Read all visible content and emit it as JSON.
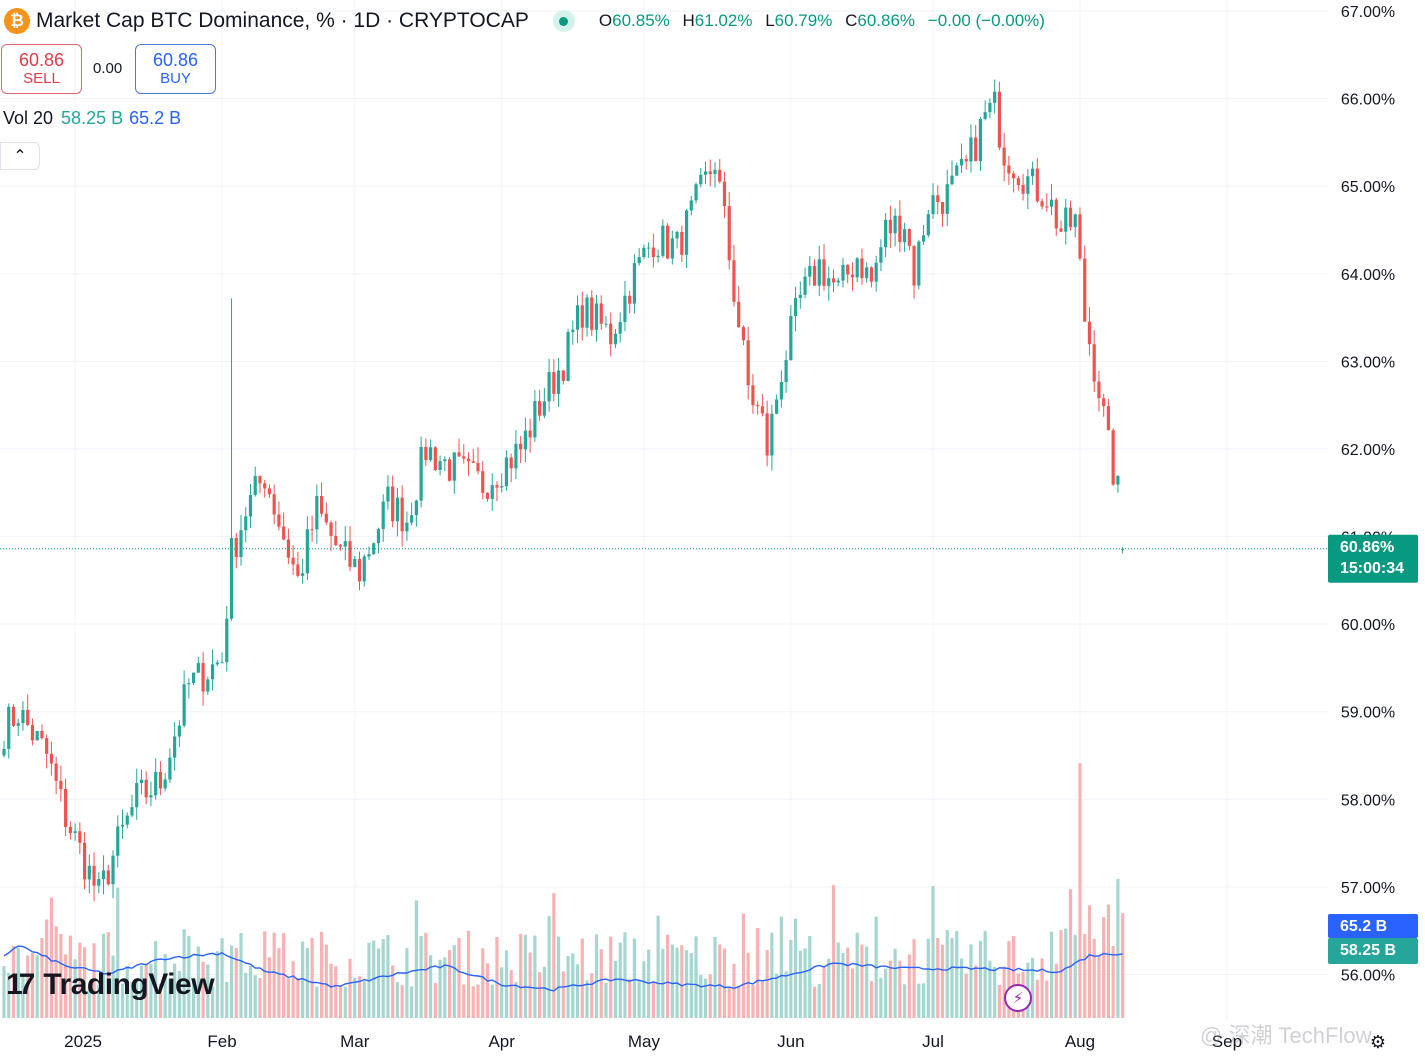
{
  "header": {
    "coin_glyph": "₿",
    "title": "Market Cap BTC Dominance, % · 1D · CRYPTOCAP",
    "ohlc": [
      {
        "key": "O",
        "value": "60.85%"
      },
      {
        "key": "H",
        "value": "61.02%"
      },
      {
        "key": "L",
        "value": "60.79%"
      },
      {
        "key": "C",
        "value": "60.86%"
      },
      {
        "key": "",
        "value": "−0.00 (−0.00%)"
      }
    ]
  },
  "trade": {
    "sell_price": "60.86",
    "sell_label": "SELL",
    "spread": "0.00",
    "buy_price": "60.86",
    "buy_label": "BUY"
  },
  "volume": {
    "label": "Vol 20",
    "value": "58.25 B",
    "ma": "65.2 B"
  },
  "collapse_icon": "chevron-up-icon",
  "logo": {
    "mark": "17",
    "text": "TradingView"
  },
  "watermark": "@ 深潮 TechFlow",
  "colors": {
    "up": "#26a69a",
    "down": "#ef5350",
    "vol_up": "#a5d6d0",
    "vol_down": "#f7b3b3",
    "ma": "#2962ff",
    "price_tag": "#089981"
  },
  "chart_data": {
    "type": "candlestick",
    "title": "Market Cap BTC Dominance, % · 1D · CRYPTOCAP",
    "y_unit": "%",
    "ylim": [
      55.7,
      67.1
    ],
    "y_ticks": [
      "56.00%",
      "57.00%",
      "58.00%",
      "59.00%",
      "60.00%",
      "61.00%",
      "62.00%",
      "63.00%",
      "64.00%",
      "65.00%",
      "66.00%",
      "67.00%"
    ],
    "x_ticks": [
      "2025",
      "Feb",
      "Mar",
      "Apr",
      "May",
      "Jun",
      "Jul",
      "Aug",
      "Sep"
    ],
    "last_price": "60.86%",
    "countdown": "15:00:34",
    "vol_ma_tag": "65.2 B",
    "vol_tag": "58.25 B",
    "close_anchors": [
      [
        "2024-12-17",
        58.8
      ],
      [
        "2024-12-20",
        59.0
      ],
      [
        "2024-12-26",
        58.5
      ],
      [
        "2024-12-30",
        57.8
      ],
      [
        "2025-01-06",
        56.9
      ],
      [
        "2025-01-10",
        57.5
      ],
      [
        "2025-01-14",
        58.0
      ],
      [
        "2025-01-19",
        58.2
      ],
      [
        "2025-01-25",
        59.3
      ],
      [
        "2025-02-01",
        59.6
      ],
      [
        "2025-02-03",
        60.8
      ],
      [
        "2025-02-06",
        61.3
      ],
      [
        "2025-02-10",
        61.7
      ],
      [
        "2025-02-14",
        61.0
      ],
      [
        "2025-02-17",
        60.5
      ],
      [
        "2025-02-21",
        61.3
      ],
      [
        "2025-02-26",
        60.8
      ],
      [
        "2025-03-02",
        60.6
      ],
      [
        "2025-03-08",
        61.4
      ],
      [
        "2025-03-12",
        61.2
      ],
      [
        "2025-03-16",
        62.0
      ],
      [
        "2025-03-21",
        61.8
      ],
      [
        "2025-03-28",
        61.6
      ],
      [
        "2025-04-05",
        62.0
      ],
      [
        "2025-04-09",
        62.5
      ],
      [
        "2025-04-14",
        63.0
      ],
      [
        "2025-04-18",
        63.6
      ],
      [
        "2025-04-24",
        63.3
      ],
      [
        "2025-04-29",
        64.0
      ],
      [
        "2025-05-03",
        64.4
      ],
      [
        "2025-05-08",
        64.3
      ],
      [
        "2025-05-12",
        64.8
      ],
      [
        "2025-05-16",
        65.3
      ],
      [
        "2025-05-18",
        64.6
      ],
      [
        "2025-05-20",
        63.8
      ],
      [
        "2025-05-23",
        62.7
      ],
      [
        "2025-05-26",
        62.3
      ],
      [
        "2025-05-27",
        62.0
      ],
      [
        "2025-05-30",
        62.9
      ],
      [
        "2025-06-03",
        63.7
      ],
      [
        "2025-06-07",
        64.1
      ],
      [
        "2025-06-11",
        63.8
      ],
      [
        "2025-06-15",
        64.2
      ],
      [
        "2025-06-18",
        63.9
      ],
      [
        "2025-06-21",
        64.5
      ],
      [
        "2025-06-25",
        64.6
      ],
      [
        "2025-06-27",
        64.0
      ],
      [
        "2025-06-30",
        64.8
      ],
      [
        "2025-07-04",
        64.9
      ],
      [
        "2025-07-08",
        65.2
      ],
      [
        "2025-07-12",
        65.8
      ],
      [
        "2025-07-14",
        65.9
      ],
      [
        "2025-07-16",
        65.4
      ],
      [
        "2025-07-19",
        65.2
      ],
      [
        "2025-07-22",
        65.0
      ],
      [
        "2025-07-25",
        64.9
      ],
      [
        "2025-07-28",
        64.5
      ],
      [
        "2025-07-31",
        64.6
      ],
      [
        "2025-08-02",
        63.5
      ],
      [
        "2025-08-05",
        62.7
      ],
      [
        "2025-08-07",
        62.0
      ],
      [
        "2025-08-09",
        61.5
      ],
      [
        "2025-08-10",
        60.86
      ]
    ],
    "volume_ma_anchors": [
      [
        "2024-12-17",
        0.24
      ],
      [
        "2024-12-20",
        0.28
      ],
      [
        "2024-12-30",
        0.2
      ],
      [
        "2025-01-08",
        0.17
      ],
      [
        "2025-01-20",
        0.23
      ],
      [
        "2025-02-01",
        0.25
      ],
      [
        "2025-02-10",
        0.18
      ],
      [
        "2025-02-25",
        0.12
      ],
      [
        "2025-03-10",
        0.17
      ],
      [
        "2025-03-20",
        0.2
      ],
      [
        "2025-04-01",
        0.13
      ],
      [
        "2025-04-12",
        0.11
      ],
      [
        "2025-04-25",
        0.15
      ],
      [
        "2025-05-08",
        0.13
      ],
      [
        "2025-05-20",
        0.12
      ],
      [
        "2025-05-30",
        0.16
      ],
      [
        "2025-06-10",
        0.21
      ],
      [
        "2025-06-25",
        0.19
      ],
      [
        "2025-07-10",
        0.19
      ],
      [
        "2025-07-28",
        0.18
      ],
      [
        "2025-08-03",
        0.24
      ],
      [
        "2025-08-10",
        0.25
      ]
    ]
  }
}
